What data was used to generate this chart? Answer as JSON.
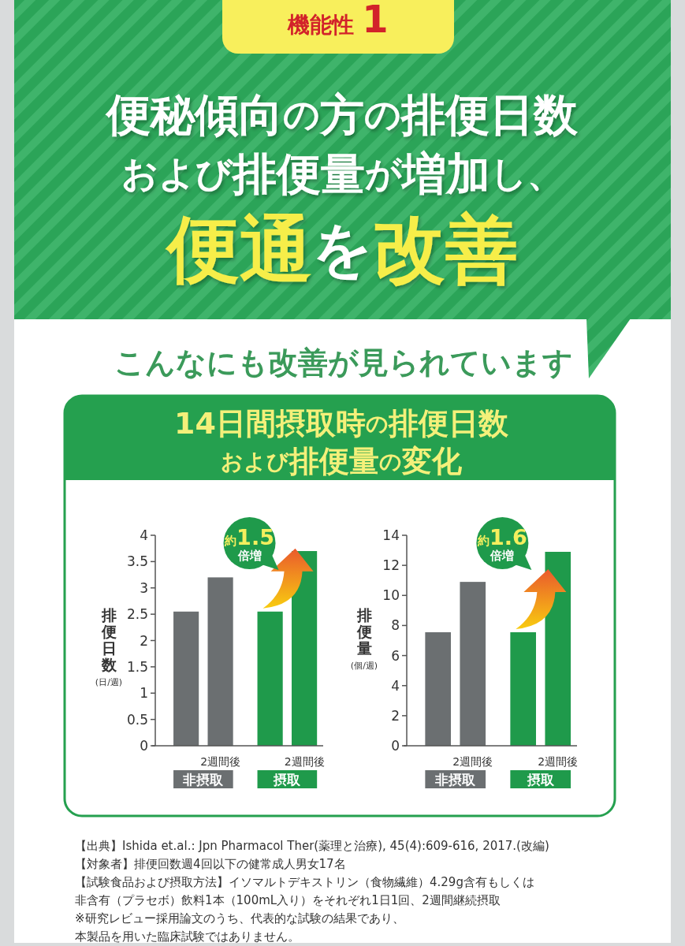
{
  "chart_data": [
    {
      "type": "bar",
      "title": "便秘傾向の方の排便日数および排便量が増加し、",
      "subtitle": "便通を改善",
      "ylabel": "排便日数\n(日/週)",
      "categories": [
        null,
        "2週間後",
        null,
        "2週間後"
      ],
      "series": [
        {
          "name": "非摂取",
          "color": "#6b6f71",
          "values": [
            2.55,
            3.2,
            null,
            null
          ]
        },
        {
          "name": "摂取",
          "color": "#1f9a4b",
          "values": [
            null,
            null,
            2.55,
            3.7
          ]
        }
      ],
      "ylim": [
        0,
        4
      ],
      "yticks": [
        0,
        0.5,
        1,
        1.5,
        2,
        2.5,
        3,
        3.5,
        4
      ],
      "legend": "bottom",
      "annotations": [
        "約1.5\n倍増",
        "機能性 1",
        "こんなにも改善が見られています",
        "14日間摂取時の排便日数および排便量の変化"
      ]
    },
    {
      "type": "bar",
      "ylabel": "排便量\n(個/週)",
      "categories": [
        null,
        "2週間後",
        null,
        "2週間後"
      ],
      "series": [
        {
          "name": "非摂取",
          "color": "#6b6f71",
          "values": [
            7.55,
            10.9,
            null,
            null
          ]
        },
        {
          "name": "摂取",
          "color": "#1f9a4b",
          "values": [
            null,
            null,
            7.55,
            12.9
          ]
        }
      ],
      "ylim": [
        0,
        14
      ],
      "yticks": [
        0,
        2,
        4,
        6,
        8,
        10,
        12,
        14
      ],
      "legend": "bottom",
      "annotations": [
        "約1.6\n倍増",
        "【出典】Ishida et.al.: Jpn Pharmacol Ther(薬理と治療), 45(4):609-616, 2017.(改編)",
        "【対象者】排便回数週4回以下の健常成人男女17名",
        "【試験食品および摂取方法】イソマルトデキストリン（食物繊維）4.29g含有もしくは",
        "非含有（プラセボ）飲料1本（100mL入り）をそれぞれ1日1回、2週間継続摂取",
        "※研究レビュー採用論文のうち、代表的な試験の結果であり、",
        "本製品を用いた臨床試験ではありません。"
      ]
    }
  ]
}
